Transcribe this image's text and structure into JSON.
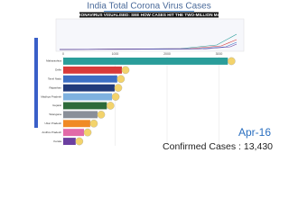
{
  "chart_data": {
    "type": "bar",
    "orientation": "horizontal",
    "title": "India Total Corona Virus Cases",
    "subtitle": "CORONAVIRUS VISUALISED: SEE HOW CASES HIT THE TWO-MILLION MARK",
    "categories": [
      "Maharashtra",
      "Delhi",
      "Tamil Nadu",
      "Rajasthan",
      "Madhya Pradesh",
      "Gujarat",
      "Telangana",
      "Uttar Pradesh",
      "Andhra Pradesh",
      "Kerala"
    ],
    "values": [
      3170,
      1130,
      1040,
      990,
      940,
      840,
      660,
      520,
      400,
      240
    ],
    "colors": [
      "#2a9d9a",
      "#d83a3a",
      "#3c6fc4",
      "#213a7a",
      "#7fb2e0",
      "#2e6b3a",
      "#8a8f99",
      "#f08a24",
      "#e26aa8",
      "#6b3fa0"
    ],
    "xlim": [
      0,
      3400
    ],
    "xticks": [
      0,
      1000,
      2000,
      3000
    ],
    "grid": true,
    "date": "Apr-16",
    "total_label": "Confirmed Cases : 13,430"
  }
}
